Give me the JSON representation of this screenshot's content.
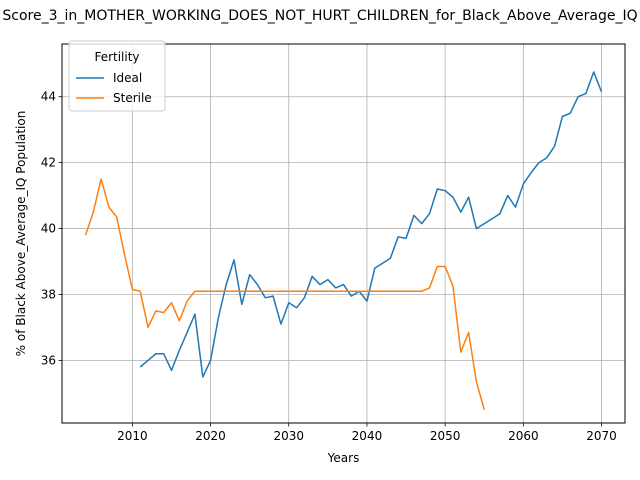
{
  "chart_data": {
    "type": "line",
    "title": "Score_3_in_MOTHER_WORKING_DOES_NOT_HURT_CHILDREN_for_Black_Above_Average_IQ",
    "xlabel": "Years",
    "ylabel": "% of Black Above_Average_IQ Population",
    "xlim": [
      2001,
      2073
    ],
    "ylim": [
      34.1,
      45.6
    ],
    "x_ticks": [
      2010,
      2020,
      2030,
      2040,
      2050,
      2060,
      2070
    ],
    "y_ticks": [
      36,
      38,
      40,
      42,
      44
    ],
    "grid": true,
    "legend": {
      "title": "Fertility",
      "placement": "top-left"
    },
    "series": [
      {
        "name": "Ideal",
        "color": "#1f77b4",
        "x": [
          2011,
          2012,
          2013,
          2014,
          2015,
          2016,
          2017,
          2018,
          2019,
          2020,
          2021,
          2022,
          2023,
          2024,
          2025,
          2026,
          2027,
          2028,
          2029,
          2030,
          2031,
          2032,
          2033,
          2034,
          2035,
          2036,
          2037,
          2038,
          2039,
          2040,
          2041,
          2042,
          2043,
          2044,
          2045,
          2046,
          2047,
          2048,
          2049,
          2050,
          2051,
          2052,
          2053,
          2054,
          2055,
          2056,
          2057,
          2058,
          2059,
          2060,
          2061,
          2062,
          2063,
          2064,
          2065,
          2066,
          2067,
          2068,
          2069,
          2070
        ],
        "y": [
          35.8,
          36.0,
          36.2,
          36.2,
          35.7,
          36.3,
          36.85,
          37.4,
          35.5,
          36.0,
          37.3,
          38.3,
          39.05,
          37.7,
          38.6,
          38.3,
          37.9,
          37.95,
          37.1,
          37.75,
          37.6,
          37.9,
          38.55,
          38.3,
          38.45,
          38.2,
          38.3,
          37.95,
          38.1,
          37.8,
          38.8,
          38.95,
          39.1,
          39.75,
          39.7,
          40.4,
          40.15,
          40.45,
          41.2,
          41.15,
          40.95,
          40.5,
          40.95,
          40.0,
          40.15,
          40.3,
          40.45,
          41.0,
          40.65,
          41.35,
          41.7,
          42.0,
          42.15,
          42.5,
          43.4,
          43.5,
          44.0,
          44.1,
          44.75,
          44.15
        ]
      },
      {
        "name": "Sterile",
        "color": "#ff7f0e",
        "x": [
          2004,
          2005,
          2006,
          2007,
          2008,
          2009,
          2010,
          2011,
          2012,
          2013,
          2014,
          2015,
          2016,
          2017,
          2018,
          2019,
          2020,
          2021,
          2022,
          2023,
          2024,
          2025,
          2026,
          2027,
          2028,
          2029,
          2030,
          2031,
          2032,
          2033,
          2034,
          2035,
          2036,
          2037,
          2038,
          2039,
          2040,
          2041,
          2042,
          2043,
          2044,
          2045,
          2046,
          2047,
          2048,
          2049,
          2050,
          2051,
          2052,
          2053,
          2054,
          2055
        ],
        "y": [
          39.8,
          40.5,
          41.5,
          40.65,
          40.35,
          39.2,
          38.15,
          38.1,
          37.0,
          37.5,
          37.45,
          37.75,
          37.2,
          37.8,
          38.1,
          38.1,
          38.1,
          38.1,
          38.1,
          38.1,
          38.1,
          38.1,
          38.1,
          38.1,
          38.1,
          38.1,
          38.1,
          38.1,
          38.1,
          38.1,
          38.1,
          38.1,
          38.1,
          38.1,
          38.1,
          38.1,
          38.1,
          38.1,
          38.1,
          38.1,
          38.1,
          38.1,
          38.1,
          38.1,
          38.2,
          38.85,
          38.85,
          38.25,
          36.25,
          36.85,
          35.35,
          34.5
        ]
      }
    ]
  }
}
